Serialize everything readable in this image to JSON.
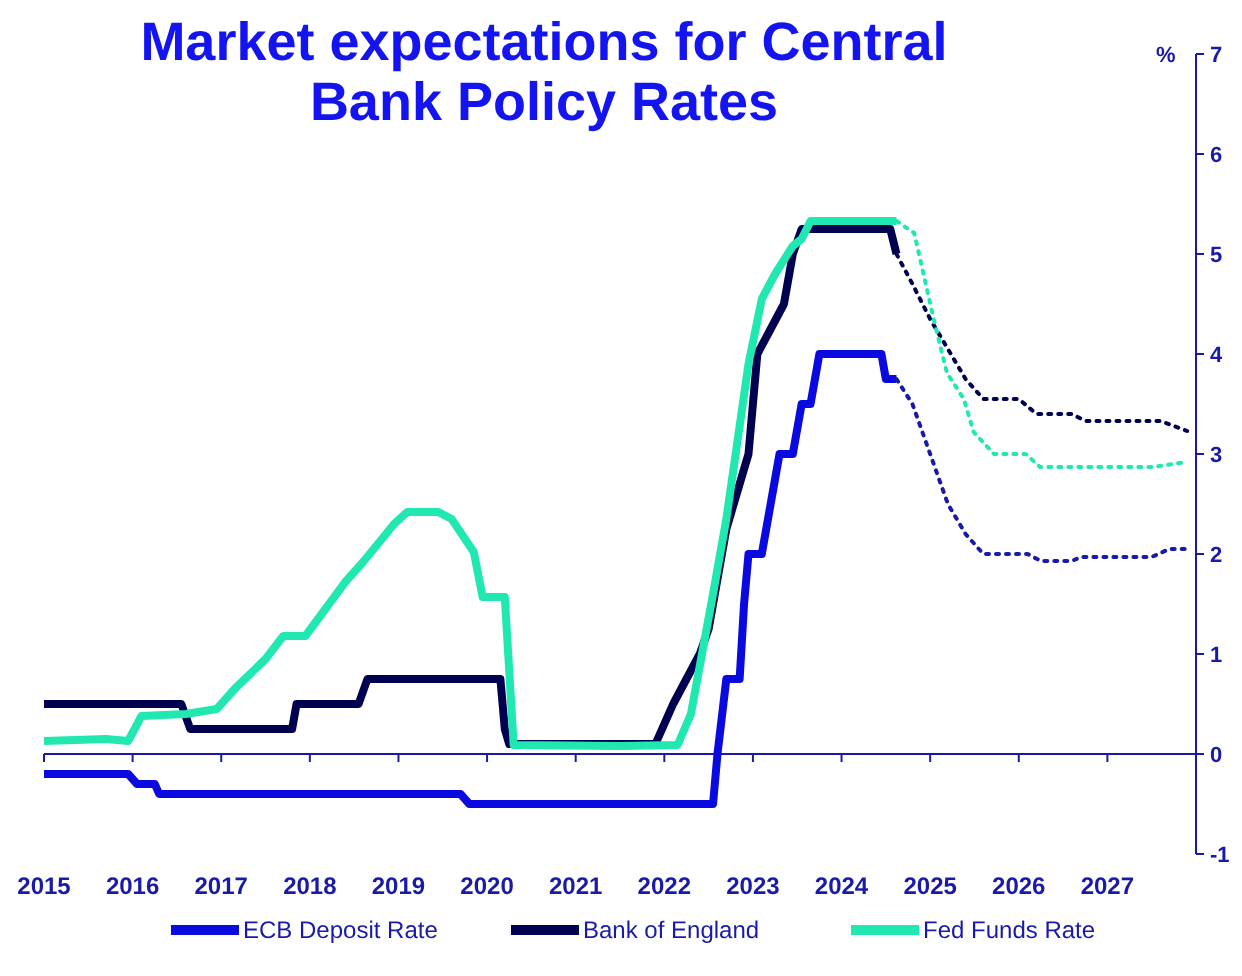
{
  "chart_data": {
    "type": "line",
    "title": "Market expectations for Central Bank Policy Rates",
    "ylabel": "%",
    "xlim": [
      2015,
      2028
    ],
    "xticks": [
      2015,
      2016,
      2017,
      2018,
      2019,
      2020,
      2021,
      2022,
      2023,
      2024,
      2025,
      2026,
      2027
    ],
    "ylim": [
      -1,
      7
    ],
    "yticks": [
      -1,
      0,
      1,
      2,
      3,
      4,
      5,
      6,
      7
    ],
    "grid": false,
    "ref_lines": [
      {
        "axis": "y",
        "value": 0,
        "color": "#1a1aa8"
      }
    ],
    "legend": "bottom",
    "marker": "none",
    "series": [
      {
        "name": "ECB Deposit Rate",
        "color": "#0a0ae0",
        "line_style": "solid",
        "x": [
          2015,
          2015.95,
          2016.05,
          2016.25,
          2016.3,
          2019.7,
          2019.8,
          2022.55,
          2022.6,
          2022.7,
          2022.85,
          2022.9,
          2022.95,
          2023.1,
          2023.2,
          2023.3,
          2023.45,
          2023.55,
          2023.65,
          2023.75,
          2024.45,
          2024.5,
          2024.62
        ],
        "values": [
          -0.2,
          -0.2,
          -0.3,
          -0.3,
          -0.4,
          -0.4,
          -0.5,
          -0.5,
          0,
          0.75,
          0.75,
          1.5,
          2,
          2,
          2.5,
          3,
          3,
          3.5,
          3.5,
          4,
          4,
          3.75,
          3.75
        ]
      },
      {
        "name": "Bank of England",
        "color": "#000050",
        "line_style": "solid",
        "x": [
          2015,
          2016.55,
          2016.65,
          2017.8,
          2017.85,
          2018.55,
          2018.65,
          2020.15,
          2020.2,
          2020.25,
          2021.9,
          2022.1,
          2022.25,
          2022.4,
          2022.5,
          2022.6,
          2022.7,
          2022.95,
          2023.05,
          2023.2,
          2023.35,
          2023.45,
          2023.55,
          2024.55,
          2024.62
        ],
        "values": [
          0.5,
          0.5,
          0.25,
          0.25,
          0.5,
          0.5,
          0.75,
          0.75,
          0.25,
          0.1,
          0.1,
          0.5,
          0.75,
          1,
          1.25,
          1.75,
          2.25,
          3,
          4,
          4.25,
          4.5,
          5,
          5.25,
          5.25,
          5
        ]
      },
      {
        "name": "Fed Funds Rate",
        "color": "#20e8b0",
        "line_style": "solid",
        "x": [
          2015,
          2015.7,
          2015.95,
          2016.1,
          2016.6,
          2016.95,
          2017.15,
          2017.5,
          2017.7,
          2017.95,
          2018.15,
          2018.4,
          2018.6,
          2018.85,
          2018.95,
          2019.1,
          2019.45,
          2019.6,
          2019.85,
          2019.95,
          2020.2,
          2020.3,
          2021.5,
          2022.15,
          2022.3,
          2022.55,
          2022.7,
          2022.95,
          2023.1,
          2023.25,
          2023.45,
          2023.55,
          2023.65,
          2024.62
        ],
        "values": [
          0.13,
          0.15,
          0.13,
          0.38,
          0.4,
          0.45,
          0.65,
          0.95,
          1.18,
          1.18,
          1.42,
          1.72,
          1.92,
          2.19,
          2.3,
          2.42,
          2.42,
          2.35,
          2.02,
          1.57,
          1.57,
          0.09,
          0.08,
          0.09,
          0.4,
          1.6,
          2.35,
          3.9,
          4.55,
          4.8,
          5.08,
          5.15,
          5.33,
          5.33
        ]
      },
      {
        "color": "#1a1aa8",
        "line_style": "dotted",
        "x": [
          2024.62,
          2024.8,
          2025.0,
          2025.2,
          2025.4,
          2025.6,
          2026.1,
          2026.25,
          2026.6,
          2026.7,
          2027.5,
          2027.7,
          2027.9
        ],
        "values": [
          3.75,
          3.5,
          3.0,
          2.5,
          2.2,
          2.0,
          2.0,
          1.93,
          1.93,
          1.97,
          1.97,
          2.05,
          2.05
        ]
      },
      {
        "color": "#000050",
        "line_style": "dotted",
        "x": [
          2024.62,
          2024.8,
          2025.0,
          2025.2,
          2025.4,
          2025.6,
          2026.0,
          2026.2,
          2026.6,
          2026.75,
          2027.6,
          2027.9
        ],
        "values": [
          5.0,
          4.7,
          4.35,
          4.05,
          3.75,
          3.55,
          3.55,
          3.4,
          3.4,
          3.33,
          3.33,
          3.23
        ]
      },
      {
        "color": "#20e8b0",
        "line_style": "dotted",
        "x": [
          2024.62,
          2024.82,
          2025.04,
          2025.19,
          2025.38,
          2025.49,
          2025.72,
          2026.08,
          2026.24,
          2027.52,
          2027.89
        ],
        "values": [
          5.33,
          5.21,
          4.35,
          3.81,
          3.55,
          3.22,
          3.0,
          3.0,
          2.87,
          2.87,
          2.92
        ]
      }
    ]
  }
}
